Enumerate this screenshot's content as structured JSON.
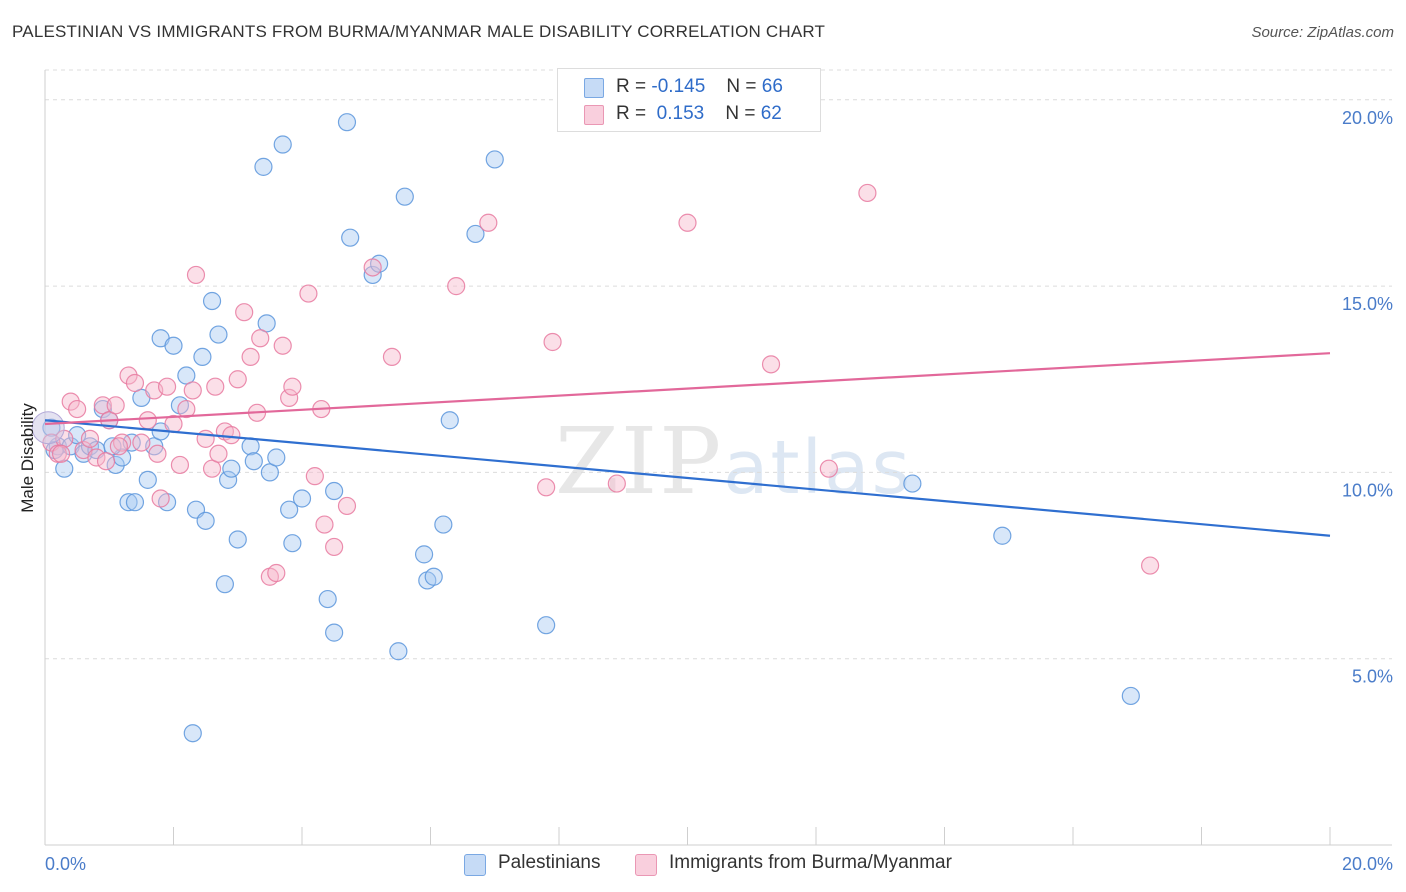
{
  "title": "PALESTINIAN VS IMMIGRANTS FROM BURMA/MYANMAR MALE DISABILITY CORRELATION CHART",
  "source": "Source: ZipAtlas.com",
  "watermark": {
    "zip": "ZIP",
    "atlas": "atlas"
  },
  "legend": {
    "rows": [
      {
        "r_label": "R =",
        "r_value": "-0.145",
        "n_label": "N =",
        "n_value": "66",
        "color": "#a9c9f2"
      },
      {
        "r_label": "R =",
        "r_value": " 0.153",
        "n_label": "N =",
        "n_value": "62",
        "color": "#f7b9cd"
      }
    ]
  },
  "bottom_legend": [
    {
      "label": "Palestinians",
      "color": "#a9c9f2"
    },
    {
      "label": "Immigrants from Burma/Myanmar",
      "color": "#f7b9cd"
    }
  ],
  "chart_data": {
    "type": "scatter",
    "ylabel": "Male Disability",
    "xlabel": "",
    "xlim": [
      0,
      20
    ],
    "ylim": [
      0,
      20.8
    ],
    "x_tick_labels": [
      "0.0%",
      "20.0%"
    ],
    "y_tick_labels": [
      "5.0%",
      "10.0%",
      "15.0%",
      "20.0%"
    ],
    "y_ticks": [
      5,
      10,
      15,
      20
    ],
    "grid": "horizontal dashed",
    "series": [
      {
        "name": "Palestinians",
        "color": "#5b95dc",
        "fill": "#a9c9f2",
        "trend": {
          "x": [
            0,
            20
          ],
          "y": [
            11.4,
            8.3
          ]
        },
        "points": [
          [
            0.1,
            11.2
          ],
          [
            0.2,
            10.7
          ],
          [
            0.3,
            10.1
          ],
          [
            0.4,
            10.7
          ],
          [
            0.5,
            11.0
          ],
          [
            0.6,
            10.5
          ],
          [
            0.7,
            10.7
          ],
          [
            0.8,
            10.6
          ],
          [
            0.9,
            11.7
          ],
          [
            1.0,
            11.4
          ],
          [
            1.1,
            10.2
          ],
          [
            1.2,
            10.4
          ],
          [
            1.3,
            9.2
          ],
          [
            1.35,
            10.8
          ],
          [
            1.4,
            9.2
          ],
          [
            1.5,
            12.0
          ],
          [
            1.6,
            9.8
          ],
          [
            1.7,
            10.7
          ],
          [
            1.8,
            11.1
          ],
          [
            1.8,
            13.6
          ],
          [
            1.9,
            9.2
          ],
          [
            2.0,
            13.4
          ],
          [
            2.1,
            11.8
          ],
          [
            2.2,
            12.6
          ],
          [
            2.3,
            3.0
          ],
          [
            2.35,
            9.0
          ],
          [
            2.45,
            13.1
          ],
          [
            2.5,
            8.7
          ],
          [
            2.6,
            14.6
          ],
          [
            2.7,
            13.7
          ],
          [
            2.8,
            7.0
          ],
          [
            2.85,
            9.8
          ],
          [
            2.9,
            10.1
          ],
          [
            3.0,
            8.2
          ],
          [
            3.2,
            10.7
          ],
          [
            3.25,
            10.3
          ],
          [
            3.4,
            18.2
          ],
          [
            3.45,
            14.0
          ],
          [
            3.5,
            10.0
          ],
          [
            3.6,
            10.4
          ],
          [
            3.7,
            18.8
          ],
          [
            3.8,
            9.0
          ],
          [
            3.85,
            8.1
          ],
          [
            4.0,
            9.3
          ],
          [
            4.4,
            6.6
          ],
          [
            4.5,
            9.5
          ],
          [
            4.5,
            5.7
          ],
          [
            4.7,
            19.4
          ],
          [
            4.75,
            16.3
          ],
          [
            5.1,
            15.3
          ],
          [
            5.2,
            15.6
          ],
          [
            5.5,
            5.2
          ],
          [
            5.6,
            17.4
          ],
          [
            5.9,
            7.8
          ],
          [
            5.95,
            7.1
          ],
          [
            6.05,
            7.2
          ],
          [
            6.2,
            8.6
          ],
          [
            6.3,
            11.4
          ],
          [
            6.7,
            16.4
          ],
          [
            7.0,
            18.4
          ],
          [
            7.8,
            5.9
          ],
          [
            13.5,
            9.7
          ],
          [
            14.9,
            8.3
          ],
          [
            16.9,
            4.0
          ],
          [
            0.15,
            10.6
          ],
          [
            1.05,
            10.7
          ]
        ]
      },
      {
        "name": "Immigrants from Burma/Myanmar",
        "color": "#e77aa0",
        "fill": "#f7b9cd",
        "trend": {
          "x": [
            0,
            20
          ],
          "y": [
            11.3,
            13.2
          ]
        },
        "points": [
          [
            0.1,
            10.8
          ],
          [
            0.2,
            10.5
          ],
          [
            0.3,
            10.9
          ],
          [
            0.4,
            11.9
          ],
          [
            0.5,
            11.7
          ],
          [
            0.6,
            10.6
          ],
          [
            0.7,
            10.9
          ],
          [
            0.8,
            10.4
          ],
          [
            0.9,
            11.8
          ],
          [
            1.0,
            11.4
          ],
          [
            1.1,
            11.8
          ],
          [
            1.2,
            10.8
          ],
          [
            1.3,
            12.6
          ],
          [
            1.4,
            12.4
          ],
          [
            1.5,
            10.8
          ],
          [
            1.6,
            11.4
          ],
          [
            1.7,
            12.2
          ],
          [
            1.75,
            10.5
          ],
          [
            1.8,
            9.3
          ],
          [
            1.9,
            12.3
          ],
          [
            2.0,
            11.3
          ],
          [
            2.1,
            10.2
          ],
          [
            2.2,
            11.7
          ],
          [
            2.3,
            12.2
          ],
          [
            2.35,
            15.3
          ],
          [
            2.5,
            10.9
          ],
          [
            2.6,
            10.1
          ],
          [
            2.65,
            12.3
          ],
          [
            2.7,
            10.5
          ],
          [
            2.8,
            11.1
          ],
          [
            2.9,
            11.0
          ],
          [
            3.0,
            12.5
          ],
          [
            3.1,
            14.3
          ],
          [
            3.2,
            13.1
          ],
          [
            3.3,
            11.6
          ],
          [
            3.35,
            13.6
          ],
          [
            3.5,
            7.2
          ],
          [
            3.6,
            7.3
          ],
          [
            3.7,
            13.4
          ],
          [
            3.8,
            12.0
          ],
          [
            3.85,
            12.3
          ],
          [
            4.1,
            14.8
          ],
          [
            4.2,
            9.9
          ],
          [
            4.3,
            11.7
          ],
          [
            4.35,
            8.6
          ],
          [
            4.5,
            8.0
          ],
          [
            4.7,
            9.1
          ],
          [
            5.1,
            15.5
          ],
          [
            5.4,
            13.1
          ],
          [
            6.4,
            15.0
          ],
          [
            6.9,
            16.7
          ],
          [
            7.8,
            9.6
          ],
          [
            7.9,
            13.5
          ],
          [
            8.9,
            9.7
          ],
          [
            10.0,
            16.7
          ],
          [
            11.3,
            12.9
          ],
          [
            12.2,
            10.1
          ],
          [
            12.8,
            17.5
          ],
          [
            17.2,
            7.5
          ],
          [
            0.25,
            10.5
          ],
          [
            1.15,
            10.7
          ],
          [
            0.95,
            10.3
          ]
        ]
      }
    ]
  }
}
